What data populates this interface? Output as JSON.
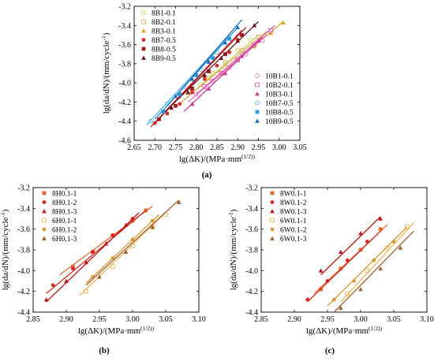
{
  "chart_data": [
    {
      "type": "scatter",
      "panel": "(a)",
      "xlabel": "lg(ΔK)/(MPa·mm^(1/2))",
      "ylabel": "lg(da/dN)/(mm/cycle^-1)",
      "xlim": [
        2.65,
        3.05
      ],
      "ylim": [
        -4.6,
        -3.2
      ],
      "xticks": [
        "2.65",
        "2.70",
        "2.75",
        "2.80",
        "2.85",
        "2.90",
        "2.95",
        "3.00",
        "3.05"
      ],
      "yticks": [
        "-3.2",
        "-3.4",
        "-3.6",
        "-3.8",
        "-4.0",
        "-4.2",
        "-4.4",
        "-4.6"
      ],
      "grid": false,
      "legends": [
        {
          "position": "top-left",
          "names": [
            "8B1-0.1",
            "8B2-0.1",
            "8B3-0.1",
            "8B7-0.5",
            "8B8-0.5",
            "8B9-0.5"
          ]
        },
        {
          "position": "bottom-right",
          "names": [
            "10B1-0.1",
            "10B2-0.1",
            "10B3-0.1",
            "10B7-0.5",
            "10B8-0.5",
            "10B9-0.5"
          ]
        }
      ],
      "series": [
        {
          "name": "8B1-0.1",
          "color": "#c8c850",
          "marker": "circle-open",
          "x": [
            2.78,
            2.81,
            2.84,
            2.87,
            2.9,
            2.93
          ],
          "y": [
            -4.12,
            -4.02,
            -3.9,
            -3.78,
            -3.66,
            -3.55
          ],
          "fit": [
            [
              2.76,
              -4.22
            ],
            [
              2.95,
              -3.5
            ]
          ]
        },
        {
          "name": "8B2-0.1",
          "color": "#d9b060",
          "marker": "square-open",
          "x": [
            2.79,
            2.83,
            2.87,
            2.91,
            2.95
          ],
          "y": [
            -4.08,
            -3.95,
            -3.8,
            -3.66,
            -3.52
          ],
          "fit": [
            [
              2.77,
              -4.18
            ],
            [
              2.97,
              -3.46
            ]
          ]
        },
        {
          "name": "8B3-0.1",
          "color": "#e0a030",
          "marker": "triangle",
          "x": [
            2.86,
            2.9,
            2.94,
            2.98,
            3.01
          ],
          "y": [
            -3.9,
            -3.76,
            -3.62,
            -3.48,
            -3.37
          ],
          "fit": [
            [
              2.84,
              -3.98
            ],
            [
              3.01,
              -3.36
            ]
          ]
        },
        {
          "name": "8B7-0.5",
          "color": "#d42a2a",
          "marker": "circle",
          "x": [
            2.7,
            2.73,
            2.76,
            2.79,
            2.82,
            2.85,
            2.88,
            2.9
          ],
          "y": [
            -4.42,
            -4.32,
            -4.22,
            -4.1,
            -3.96,
            -3.82,
            -3.68,
            -3.55
          ],
          "fit": [
            [
              2.69,
              -4.46
            ],
            [
              2.91,
              -3.45
            ]
          ]
        },
        {
          "name": "8B8-0.5",
          "color": "#a01820",
          "marker": "square",
          "x": [
            2.71,
            2.75,
            2.79,
            2.83,
            2.87,
            2.91
          ],
          "y": [
            -4.38,
            -4.24,
            -4.06,
            -3.88,
            -3.7,
            -3.5
          ],
          "fit": [
            [
              2.7,
              -4.42
            ],
            [
              2.92,
              -3.42
            ]
          ]
        },
        {
          "name": "8B9-0.5",
          "color": "#6a0e14",
          "marker": "triangle",
          "x": [
            2.74,
            2.78,
            2.82,
            2.86,
            2.9,
            2.94
          ],
          "y": [
            -4.26,
            -4.1,
            -3.92,
            -3.74,
            -3.56,
            -3.4
          ],
          "fit": [
            [
              2.72,
              -4.32
            ],
            [
              2.95,
              -3.36
            ]
          ]
        },
        {
          "name": "10B1-0.1",
          "color": "#e07ac0",
          "marker": "circle-open",
          "x": [
            2.8,
            2.84,
            2.88,
            2.92,
            2.96
          ],
          "y": [
            -4.12,
            -3.98,
            -3.84,
            -3.7,
            -3.56
          ],
          "fit": [
            [
              2.78,
              -4.2
            ],
            [
              2.97,
              -3.5
            ]
          ]
        },
        {
          "name": "10B2-0.1",
          "color": "#e060b0",
          "marker": "square-open",
          "x": [
            2.82,
            2.86,
            2.9,
            2.94,
            2.98
          ],
          "y": [
            -4.04,
            -3.9,
            -3.76,
            -3.6,
            -3.45
          ],
          "fit": [
            [
              2.8,
              -4.12
            ],
            [
              2.99,
              -3.4
            ]
          ]
        },
        {
          "name": "10B3-0.1",
          "color": "#c8389a",
          "marker": "triangle",
          "x": [
            2.79,
            2.83,
            2.87,
            2.91,
            2.95
          ],
          "y": [
            -4.22,
            -4.06,
            -3.9,
            -3.72,
            -3.56
          ],
          "fit": [
            [
              2.77,
              -4.3
            ],
            [
              2.96,
              -3.52
            ]
          ]
        },
        {
          "name": "10B7-0.5",
          "color": "#50b8e0",
          "marker": "circle-open",
          "x": [
            2.69,
            2.73,
            2.77,
            2.81,
            2.85
          ],
          "y": [
            -4.4,
            -4.22,
            -4.04,
            -3.86,
            -3.68
          ],
          "fit": [
            [
              2.68,
              -4.44
            ],
            [
              2.88,
              -3.5
            ]
          ]
        },
        {
          "name": "10B8-0.5",
          "color": "#2898d8",
          "marker": "square",
          "x": [
            2.72,
            2.76,
            2.8,
            2.84,
            2.88
          ],
          "y": [
            -4.3,
            -4.12,
            -3.92,
            -3.74,
            -3.54
          ],
          "fit": [
            [
              2.7,
              -4.38
            ],
            [
              2.9,
              -3.42
            ]
          ]
        },
        {
          "name": "10B9-0.5",
          "color": "#1a6ab8",
          "marker": "triangle",
          "x": [
            2.75,
            2.79,
            2.83,
            2.87,
            2.9
          ],
          "y": [
            -4.14,
            -3.96,
            -3.78,
            -3.58,
            -3.42
          ],
          "fit": [
            [
              2.73,
              -4.24
            ],
            [
              2.91,
              -3.34
            ]
          ]
        }
      ]
    },
    {
      "type": "scatter",
      "panel": "(b)",
      "xlabel": "lg(ΔK)/(MPa·mm^(1/2))",
      "ylabel": "lg(da/dN)/(mm/cycle^-1)",
      "xlim": [
        2.85,
        3.1
      ],
      "ylim": [
        -4.4,
        -3.2
      ],
      "xticks": [
        "2.85",
        "2.90",
        "2.95",
        "3.00",
        "3.05",
        "3.10"
      ],
      "yticks": [
        "-3.2",
        "-3.4",
        "-3.6",
        "-3.8",
        "-4.0",
        "-4.2",
        "-4.4"
      ],
      "grid": false,
      "legends": [
        {
          "position": "top-left",
          "names": [
            "8H0.1-1",
            "8H0.1-2",
            "8H0.1-3",
            "6H0.1-1",
            "6H0.1-2",
            "6H0.1-3"
          ]
        }
      ],
      "series": [
        {
          "name": "8H0.1-1",
          "color": "#e06a30",
          "marker": "square",
          "x": [
            2.91,
            2.94,
            2.97,
            3.0,
            3.02
          ],
          "y": [
            -3.96,
            -3.82,
            -3.66,
            -3.52,
            -3.42
          ],
          "fit": [
            [
              2.89,
              -4.04
            ],
            [
              3.03,
              -3.38
            ]
          ]
        },
        {
          "name": "8H0.1-2",
          "color": "#d42a20",
          "marker": "circle",
          "x": [
            2.88,
            2.91,
            2.94,
            2.97,
            3.0
          ],
          "y": [
            -4.14,
            -3.98,
            -3.82,
            -3.66,
            -3.5
          ],
          "fit": [
            [
              2.87,
              -4.22
            ],
            [
              3.02,
              -3.42
            ]
          ]
        },
        {
          "name": "8H0.1-3",
          "color": "#b81818",
          "marker": "triangle",
          "x": [
            2.87,
            2.9,
            2.93,
            2.96,
            2.99
          ],
          "y": [
            -4.28,
            -4.1,
            -3.92,
            -3.74,
            -3.56
          ],
          "fit": [
            [
              2.87,
              -4.3
            ],
            [
              3.01,
              -3.44
            ]
          ]
        },
        {
          "name": "6H0.1-1",
          "color": "#e8b858",
          "marker": "square-open",
          "x": [
            2.93,
            2.97,
            3.0,
            3.03,
            3.05
          ],
          "y": [
            -4.2,
            -3.96,
            -3.76,
            -3.58,
            -3.46
          ],
          "fit": [
            [
              2.92,
              -4.24
            ],
            [
              3.05,
              -3.44
            ]
          ]
        },
        {
          "name": "6H0.1-2",
          "color": "#d89838",
          "marker": "circle",
          "x": [
            2.94,
            2.97,
            3.0,
            3.03
          ],
          "y": [
            -4.06,
            -3.88,
            -3.7,
            -3.52
          ],
          "fit": [
            [
              2.93,
              -4.12
            ],
            [
              3.04,
              -3.46
            ]
          ]
        },
        {
          "name": "6H0.1-3",
          "color": "#a06030",
          "marker": "triangle",
          "x": [
            2.95,
            2.99,
            3.03,
            3.07
          ],
          "y": [
            -4.06,
            -3.82,
            -3.58,
            -3.34
          ],
          "fit": [
            [
              2.93,
              -4.14
            ],
            [
              3.07,
              -3.32
            ]
          ]
        }
      ]
    },
    {
      "type": "scatter",
      "panel": "(c)",
      "xlabel": "lg(ΔK)/(MPa·mm^(1/2))",
      "ylabel": "lg(da/dN)/(mm/cycle^-1)",
      "xlim": [
        2.85,
        3.1
      ],
      "ylim": [
        -4.4,
        -3.2
      ],
      "xticks": [
        "2.85",
        "2.90",
        "2.95",
        "3.00",
        "3.05",
        "3.10"
      ],
      "yticks": [
        "-3.2",
        "-3.4",
        "-3.6",
        "-3.8",
        "-4.0",
        "-4.2",
        "-4.4"
      ],
      "grid": false,
      "legends": [
        {
          "position": "top-left",
          "names": [
            "8W0.1-1",
            "8W0.1-2",
            "8W0.1-3",
            "6W0.1-1",
            "6W0.1-2",
            "6W0.1-3"
          ]
        }
      ],
      "series": [
        {
          "name": "8W0.1-1",
          "color": "#e06a30",
          "marker": "square",
          "x": [
            2.94,
            2.97,
            3.0,
            3.03
          ],
          "y": [
            -4.18,
            -3.98,
            -3.8,
            -3.6
          ],
          "fit": [
            [
              2.93,
              -4.22
            ],
            [
              3.04,
              -3.56
            ]
          ]
        },
        {
          "name": "8W0.1-2",
          "color": "#d42a20",
          "marker": "circle",
          "x": [
            2.92,
            2.95,
            2.98,
            3.01
          ],
          "y": [
            -4.28,
            -4.1,
            -3.9,
            -3.72
          ],
          "fit": [
            [
              2.92,
              -4.3
            ],
            [
              3.03,
              -3.62
            ]
          ]
        },
        {
          "name": "8W0.1-3",
          "color": "#b81818",
          "marker": "triangle",
          "x": [
            2.94,
            2.97,
            3.0,
            3.03
          ],
          "y": [
            -4.0,
            -3.82,
            -3.64,
            -3.5
          ],
          "fit": [
            [
              2.94,
              -4.04
            ],
            [
              3.03,
              -3.48
            ]
          ]
        },
        {
          "name": "6W0.1-1",
          "color": "#e8b858",
          "marker": "square-open",
          "x": [
            2.98,
            3.01,
            3.04,
            3.07
          ],
          "y": [
            -4.22,
            -4.0,
            -3.78,
            -3.58
          ],
          "fit": [
            [
              2.97,
              -4.3
            ],
            [
              3.08,
              -3.54
            ]
          ]
        },
        {
          "name": "6W0.1-2",
          "color": "#d89838",
          "marker": "circle",
          "x": [
            2.96,
            2.99,
            3.02,
            3.05
          ],
          "y": [
            -4.28,
            -4.1,
            -3.9,
            -3.72
          ],
          "fit": [
            [
              2.95,
              -4.34
            ],
            [
              3.07,
              -3.58
            ]
          ]
        },
        {
          "name": "6W0.1-3",
          "color": "#a06030",
          "marker": "triangle",
          "x": [
            2.97,
            3.0,
            3.03,
            3.06
          ],
          "y": [
            -4.36,
            -4.18,
            -3.98,
            -3.78
          ],
          "fit": [
            [
              2.96,
              -4.4
            ],
            [
              3.08,
              -3.62
            ]
          ]
        }
      ]
    }
  ]
}
